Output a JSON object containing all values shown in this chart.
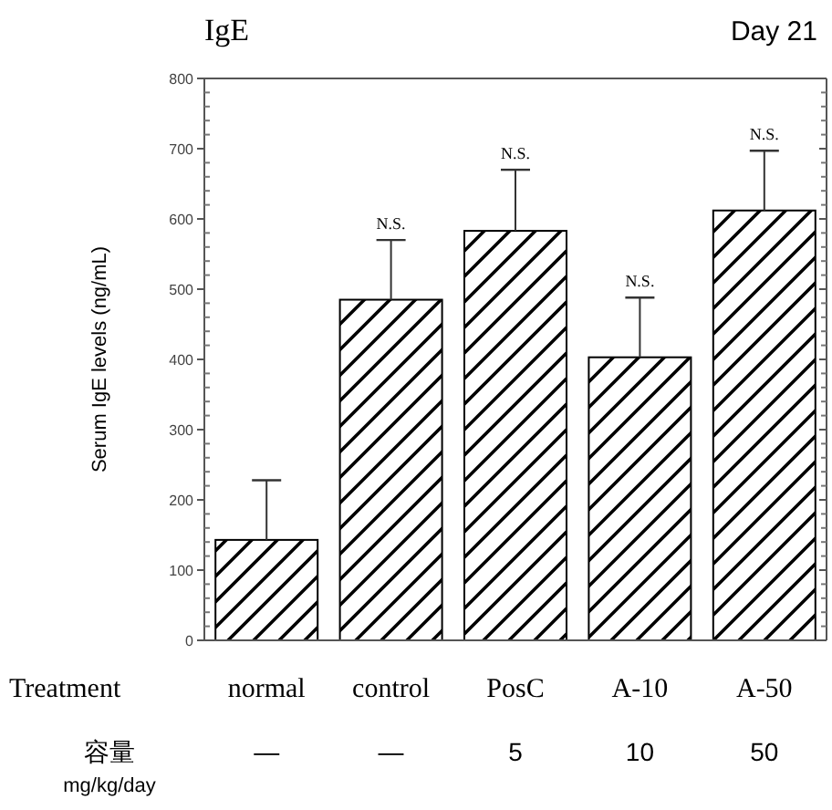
{
  "chart_data": {
    "type": "bar",
    "title": "IgE",
    "subtitle": "Day 21",
    "xlabel": "Treatment",
    "ylabel": "Serum IgE levels (ng/mL)",
    "categories": [
      "normal",
      "control",
      "PosC",
      "A-10",
      "A-50"
    ],
    "color": "#000000",
    "values": [
      143,
      485,
      583,
      403,
      612
    ],
    "errors": [
      [
        143,
        228
      ],
      [
        485,
        570
      ],
      [
        583,
        670
      ],
      [
        403,
        488
      ],
      [
        612,
        697
      ]
    ],
    "ylim": [
      0,
      800
    ],
    "yticks": [
      0,
      100,
      200,
      300,
      400,
      500,
      600,
      700,
      800
    ],
    "grid": false,
    "annotations": [
      {
        "text": "N.S.",
        "x": "control",
        "y": 570
      },
      {
        "text": "N.S.",
        "x": "PosC",
        "y": 670
      },
      {
        "text": "N.S.",
        "x": "A-10",
        "y": 488
      },
      {
        "text": "N.S.",
        "x": "A-50",
        "y": 697
      },
      "容量",
      "mg/kg/day",
      "—",
      "—",
      "5",
      "10",
      "50"
    ]
  }
}
